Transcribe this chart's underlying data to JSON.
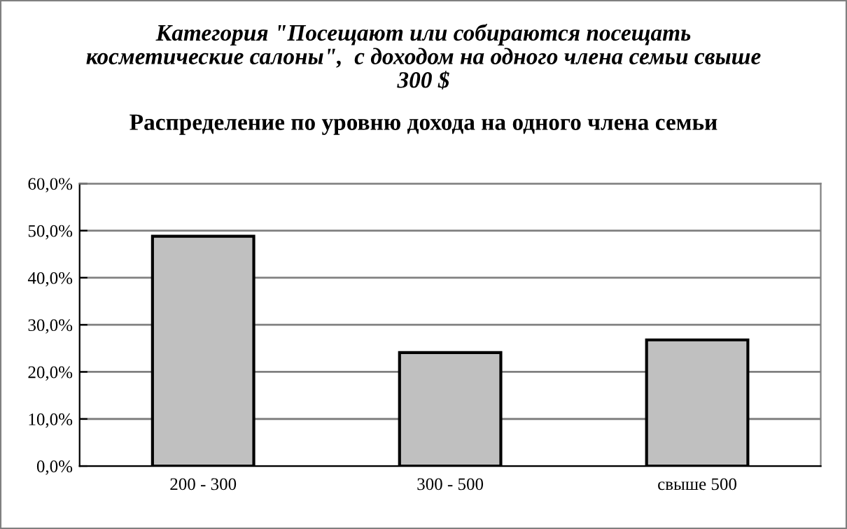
{
  "chart_data": {
    "type": "bar",
    "title": "Категория \"Посещают или собираются посещать\nкосметические салоны\",  с доходом на одного члена семьи свыше\n300 $",
    "subtitle": "Распределение по уровню дохода на одного члена семьи",
    "categories": [
      "200 - 300",
      "300 - 500",
      "свыше 500"
    ],
    "values": [
      48.8,
      24.1,
      26.8
    ],
    "color": "#c0c0c0",
    "ylim": [
      0,
      60
    ],
    "yticks": [
      {
        "value": 0,
        "label": "0,0%"
      },
      {
        "value": 10,
        "label": "10,0%"
      },
      {
        "value": 20,
        "label": "20,0%"
      },
      {
        "value": 30,
        "label": "30,0%"
      },
      {
        "value": 40,
        "label": "40,0%"
      },
      {
        "value": 50,
        "label": "50,0%"
      },
      {
        "value": 60,
        "label": "60,0%"
      }
    ],
    "grid": "y",
    "legend": false
  }
}
